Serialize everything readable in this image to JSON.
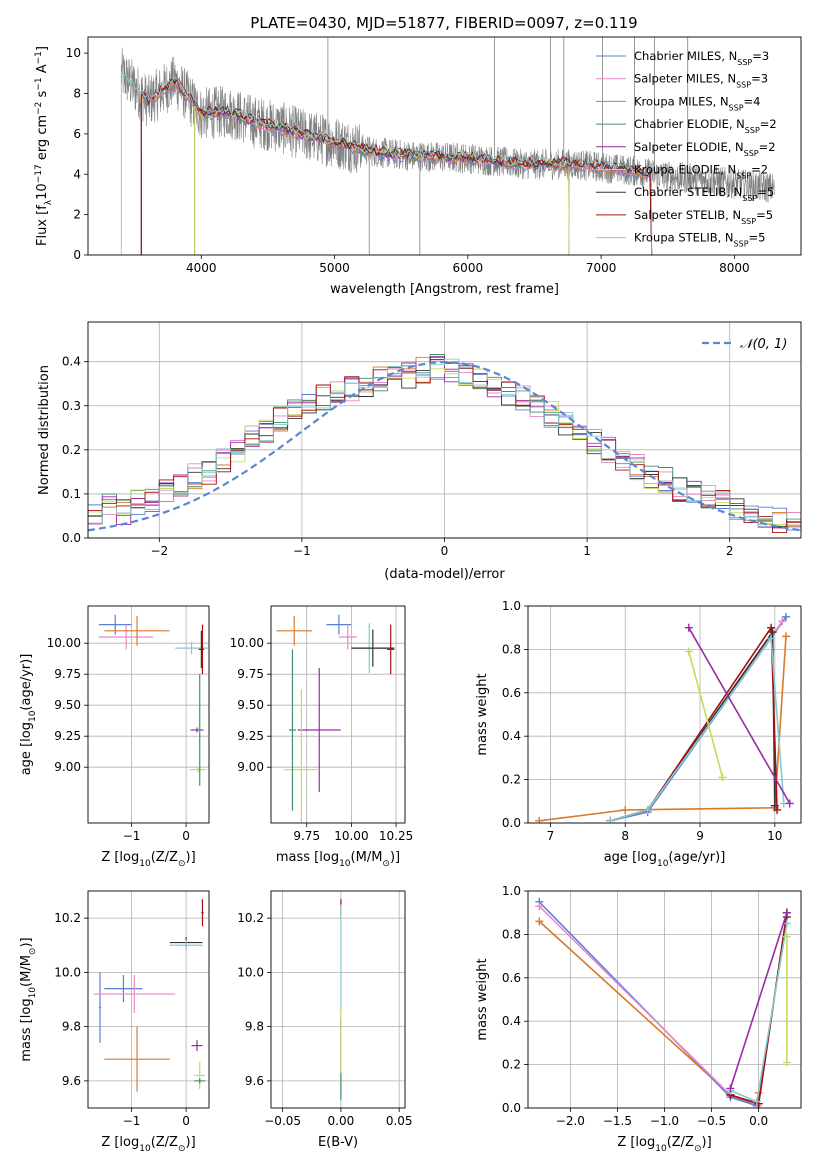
{
  "colors": {
    "data": "#808080",
    "series": [
      "#5b7fd8",
      "#e889c5",
      "#d97a2b",
      "#3f8f6f",
      "#9b2aa8",
      "#c2dd5a",
      "#333333",
      "#a51010",
      "#86c9cf"
    ],
    "normal": "#5b86d3"
  },
  "chart_data": [
    {
      "id": "spectrum",
      "type": "line",
      "title": "PLATE=0430, MJD=51877, FIBERID=0097, z=0.119",
      "xlabel": "wavelength [Angstrom, rest frame]",
      "ylabel_parts": [
        "Flux [f",
        "λ",
        "10",
        "−17",
        " erg cm",
        "−2",
        " s",
        "−1",
        " A",
        "−1",
        "]"
      ],
      "xlim": [
        3150,
        8500
      ],
      "ylim": [
        0,
        10.8
      ],
      "xticks": [
        {
          "v": 4000,
          "t": "4000"
        },
        {
          "v": 5000,
          "t": "5000"
        },
        {
          "v": 6000,
          "t": "6000"
        },
        {
          "v": 7000,
          "t": "7000"
        },
        {
          "v": 8000,
          "t": "8000"
        }
      ],
      "yticks": [
        {
          "v": 0,
          "t": "0"
        },
        {
          "v": 2,
          "t": "2"
        },
        {
          "v": 4,
          "t": "4"
        },
        {
          "v": 6,
          "t": "6"
        },
        {
          "v": 8,
          "t": "8"
        },
        {
          "v": 10,
          "t": "10"
        }
      ],
      "data_trend": {
        "x": [
          3400,
          3600,
          3800,
          4000,
          4200,
          4400,
          4600,
          4800,
          5000,
          5300,
          5600,
          6000,
          6400,
          6800,
          7200,
          7500,
          7800,
          8300
        ],
        "y": [
          9.0,
          7.6,
          8.6,
          7.0,
          7.1,
          6.6,
          6.3,
          5.9,
          5.6,
          5.1,
          4.9,
          4.8,
          4.5,
          4.5,
          4.2,
          3.9,
          3.7,
          3.3
        ]
      },
      "legend_position": "upper-right",
      "legend": [
        {
          "pre": "Chabrier MILES, N",
          "sub": "SSP",
          "post": "=3"
        },
        {
          "pre": "Salpeter MILES, N",
          "sub": "SSP",
          "post": "=3"
        },
        {
          "pre": "Kroupa MILES, N",
          "sub": "SSP",
          "post": "=4"
        },
        {
          "pre": "Chabrier ELODIE, N",
          "sub": "SSP",
          "post": "=2"
        },
        {
          "pre": "Salpeter ELODIE, N",
          "sub": "SSP",
          "post": "=2"
        },
        {
          "pre": "Kroupa ELODIE, N",
          "sub": "SSP",
          "post": "=2"
        },
        {
          "pre": "Chabrier STELIB, N",
          "sub": "SSP",
          "post": "=5"
        },
        {
          "pre": "Salpeter STELIB, N",
          "sub": "SSP",
          "post": "=5"
        },
        {
          "pre": "Kroupa STELIB, N",
          "sub": "SSP",
          "post": "=5"
        }
      ]
    },
    {
      "id": "residuals",
      "type": "line",
      "xlabel": "(data-model)/error",
      "ylabel": "Normed distribution",
      "xlim": [
        -2.5,
        2.5
      ],
      "ylim": [
        0,
        0.49
      ],
      "grid": true,
      "xticks": [
        {
          "v": -2,
          "t": "−2"
        },
        {
          "v": -1,
          "t": "−1"
        },
        {
          "v": 0,
          "t": "0"
        },
        {
          "v": 1,
          "t": "1"
        },
        {
          "v": 2,
          "t": "2"
        }
      ],
      "yticks": [
        {
          "v": 0,
          "t": "0.0"
        },
        {
          "v": 0.1,
          "t": "0.1"
        },
        {
          "v": 0.2,
          "t": "0.2"
        },
        {
          "v": 0.3,
          "t": "0.3"
        },
        {
          "v": 0.4,
          "t": "0.4"
        }
      ],
      "bin_width": 0.1,
      "base_hist": [
        0.05,
        0.07,
        0.06,
        0.08,
        0.09,
        0.11,
        0.12,
        0.14,
        0.15,
        0.18,
        0.2,
        0.23,
        0.24,
        0.27,
        0.29,
        0.3,
        0.32,
        0.33,
        0.34,
        0.35,
        0.36,
        0.37,
        0.37,
        0.38,
        0.39,
        0.38,
        0.37,
        0.36,
        0.35,
        0.33,
        0.32,
        0.3,
        0.28,
        0.26,
        0.24,
        0.22,
        0.2,
        0.18,
        0.16,
        0.14,
        0.13,
        0.11,
        0.1,
        0.09,
        0.08,
        0.07,
        0.06,
        0.05,
        0.04,
        0.03
      ],
      "legend_label": "𝒩(0, 1)"
    },
    {
      "id": "age-vs-z",
      "type": "scatter",
      "xlabel_parts": [
        "Z [log",
        "10",
        "(Z/Z",
        "⊙",
        ")]"
      ],
      "ylabel_parts": [
        "age  [log",
        "10",
        "(age/yr)]"
      ],
      "xlim": [
        -1.8,
        0.42
      ],
      "ylim": [
        8.55,
        10.3
      ],
      "grid": true,
      "xticks": [
        {
          "v": -1,
          "t": "−1"
        },
        {
          "v": 0,
          "t": "0"
        }
      ],
      "yticks": [
        {
          "v": 9.0,
          "t": "9.00"
        },
        {
          "v": 9.25,
          "t": "9.25"
        },
        {
          "v": 9.5,
          "t": "9.50"
        },
        {
          "v": 9.75,
          "t": "9.75"
        },
        {
          "v": 10.0,
          "t": "10.00"
        }
      ],
      "errorbars": [
        {
          "s": 0,
          "x": -1.3,
          "y": 10.15,
          "dx": 0.3,
          "dy": 0.08
        },
        {
          "s": 1,
          "x": -1.1,
          "y": 10.05,
          "dx": 0.5,
          "dy": 0.1
        },
        {
          "s": 2,
          "x": -0.9,
          "y": 10.1,
          "dx": 0.6,
          "dy": 0.12
        },
        {
          "s": 8,
          "x": 0.1,
          "y": 9.96,
          "dx": 0.3,
          "dy": 0.05
        },
        {
          "s": 6,
          "x": 0.28,
          "y": 9.95,
          "dx": 0.05,
          "dy": 0.15
        },
        {
          "s": 7,
          "x": 0.3,
          "y": 9.95,
          "dx": 0.02,
          "dy": 0.2
        },
        {
          "s": 4,
          "x": 0.2,
          "y": 9.3,
          "dx": 0.12,
          "dy": 0.02
        },
        {
          "s": 5,
          "x": 0.22,
          "y": 8.98,
          "dx": 0.15,
          "dy": 0.02
        },
        {
          "s": 3,
          "x": 0.25,
          "y": 9.3,
          "dx": 0.02,
          "dy": 0.45
        }
      ]
    },
    {
      "id": "age-vs-mass",
      "type": "scatter",
      "xlabel_parts": [
        "mass [log",
        "10",
        "(M/M",
        "⊙",
        ")]"
      ],
      "xlim": [
        9.55,
        10.3
      ],
      "ylim": [
        8.55,
        10.3
      ],
      "grid": true,
      "xticks": [
        {
          "v": 9.75,
          "t": "9.75"
        },
        {
          "v": 10.0,
          "t": "10.00"
        },
        {
          "v": 10.25,
          "t": "10.25"
        }
      ],
      "yticks": [
        {
          "v": 9.0,
          "t": "9.00"
        },
        {
          "v": 9.25,
          "t": "9.25"
        },
        {
          "v": 9.5,
          "t": "9.50"
        },
        {
          "v": 9.75,
          "t": "9.75"
        },
        {
          "v": 10.0,
          "t": "10.00"
        }
      ],
      "errorbars": [
        {
          "s": 0,
          "x": 9.93,
          "y": 10.15,
          "dx": 0.07,
          "dy": 0.08
        },
        {
          "s": 1,
          "x": 9.98,
          "y": 10.05,
          "dx": 0.05,
          "dy": 0.1
        },
        {
          "s": 2,
          "x": 9.68,
          "y": 10.1,
          "dx": 0.1,
          "dy": 0.12
        },
        {
          "s": 8,
          "x": 10.1,
          "y": 9.96,
          "dx": 0.1,
          "dy": 0.2
        },
        {
          "s": 6,
          "x": 10.12,
          "y": 9.96,
          "dx": 0.12,
          "dy": 0.15
        },
        {
          "s": 7,
          "x": 10.22,
          "y": 9.95,
          "dx": 0.02,
          "dy": 0.2
        },
        {
          "s": 4,
          "x": 9.82,
          "y": 9.3,
          "dx": 0.12,
          "dy": 0.5
        },
        {
          "s": 5,
          "x": 9.72,
          "y": 8.98,
          "dx": 0.1,
          "dy": 0.65
        },
        {
          "s": 3,
          "x": 9.67,
          "y": 9.3,
          "dx": 0.02,
          "dy": 0.65
        }
      ]
    },
    {
      "id": "weight-vs-age",
      "type": "line",
      "xlabel_parts": [
        "age  [log",
        "10",
        "(age/yr)]"
      ],
      "ylabel": "mass weight",
      "xlim": [
        6.7,
        10.35
      ],
      "ylim": [
        0,
        1.0
      ],
      "grid": true,
      "xticks": [
        {
          "v": 7,
          "t": "7"
        },
        {
          "v": 8,
          "t": "8"
        },
        {
          "v": 9,
          "t": "9"
        },
        {
          "v": 10,
          "t": "10"
        }
      ],
      "yticks": [
        {
          "v": 0,
          "t": "0.0"
        },
        {
          "v": 0.2,
          "t": "0.2"
        },
        {
          "v": 0.4,
          "t": "0.4"
        },
        {
          "v": 0.6,
          "t": "0.6"
        },
        {
          "v": 0.8,
          "t": "0.8"
        },
        {
          "v": 1.0,
          "t": "1.0"
        }
      ],
      "series": [
        {
          "s": 2,
          "x": [
            6.85,
            8.0,
            10.0,
            10.15
          ],
          "y": [
            0.01,
            0.06,
            0.07,
            0.86
          ]
        },
        {
          "s": 0,
          "x": [
            7.8,
            8.3,
            10.15
          ],
          "y": [
            0.01,
            0.05,
            0.95
          ]
        },
        {
          "s": 1,
          "x": [
            7.8,
            8.3,
            10.1
          ],
          "y": [
            0.01,
            0.06,
            0.93
          ]
        },
        {
          "s": 6,
          "x": [
            7.8,
            8.3,
            9.97,
            10.0
          ],
          "y": [
            0.01,
            0.06,
            0.88,
            0.08
          ]
        },
        {
          "s": 7,
          "x": [
            7.8,
            8.3,
            9.95,
            10.03
          ],
          "y": [
            0.01,
            0.06,
            0.9,
            0.06
          ]
        },
        {
          "s": 8,
          "x": [
            7.8,
            8.3,
            9.95,
            10.12
          ],
          "y": [
            0.01,
            0.06,
            0.85,
            0.09
          ]
        },
        {
          "s": 4,
          "x": [
            8.85,
            10.2
          ],
          "y": [
            0.9,
            0.09
          ]
        },
        {
          "s": 5,
          "x": [
            8.85,
            9.3
          ],
          "y": [
            0.79,
            0.21
          ]
        }
      ]
    },
    {
      "id": "mass-vs-z",
      "type": "scatter",
      "xlabel_parts": [
        "Z [log",
        "10",
        "(Z/Z",
        "⊙",
        ")]"
      ],
      "ylabel_parts": [
        "mass [log",
        "10",
        "(M/M",
        "⊙",
        ")]"
      ],
      "xlim": [
        -1.8,
        0.42
      ],
      "ylim": [
        9.5,
        10.3
      ],
      "grid": true,
      "xticks": [
        {
          "v": -1,
          "t": "−1"
        },
        {
          "v": 0,
          "t": "0"
        }
      ],
      "yticks": [
        {
          "v": 9.6,
          "t": "9.6"
        },
        {
          "v": 9.8,
          "t": "9.8"
        },
        {
          "v": 10.0,
          "t": "10.0"
        },
        {
          "v": 10.2,
          "t": "10.2"
        }
      ],
      "errorbars": [
        {
          "s": 0,
          "x": -1.15,
          "y": 9.94,
          "dx": 0.35,
          "dy": 0.05
        },
        {
          "s": 0,
          "x": -1.58,
          "y": 9.87,
          "dx": 0.02,
          "dy": 0.13
        },
        {
          "s": 1,
          "x": -0.95,
          "y": 9.92,
          "dx": 0.75,
          "dy": 0.07
        },
        {
          "s": 2,
          "x": -0.9,
          "y": 9.68,
          "dx": 0.6,
          "dy": 0.12
        },
        {
          "s": 6,
          "x": 0.0,
          "y": 10.11,
          "dx": 0.3,
          "dy": 0.02
        },
        {
          "s": 8,
          "x": 0.0,
          "y": 10.1,
          "dx": 0.3,
          "dy": 0.02
        },
        {
          "s": 7,
          "x": 0.3,
          "y": 10.22,
          "dx": 0.02,
          "dy": 0.05
        },
        {
          "s": 4,
          "x": 0.2,
          "y": 9.73,
          "dx": 0.1,
          "dy": 0.02
        },
        {
          "s": 5,
          "x": 0.25,
          "y": 9.62,
          "dx": 0.1,
          "dy": 0.05
        },
        {
          "s": 3,
          "x": 0.25,
          "y": 9.6,
          "dx": 0.1,
          "dy": 0.01
        }
      ]
    },
    {
      "id": "mass-vs-ebv",
      "type": "scatter",
      "xlabel": "E(B-V)",
      "xlim": [
        -0.06,
        0.055
      ],
      "ylim": [
        9.5,
        10.3
      ],
      "grid": true,
      "xticks": [
        {
          "v": -0.05,
          "t": "−0.05"
        },
        {
          "v": 0.0,
          "t": "0.00"
        },
        {
          "v": 0.05,
          "t": "0.05"
        }
      ],
      "yticks": [
        {
          "v": 9.6,
          "t": "9.6"
        },
        {
          "v": 9.8,
          "t": "9.8"
        },
        {
          "v": 10.0,
          "t": "10.0"
        },
        {
          "v": 10.2,
          "t": "10.2"
        }
      ],
      "errorbars": [
        {
          "s": 7,
          "x": 0.0,
          "y": 10.24,
          "dx": 0,
          "dy": 0.03
        },
        {
          "s": 8,
          "x": 0.0,
          "y": 10.05,
          "dx": 0,
          "dy": 0.2
        },
        {
          "s": 4,
          "x": 0.0,
          "y": 9.73,
          "dx": 0,
          "dy": 0.1
        },
        {
          "s": 5,
          "x": 0.0,
          "y": 9.7,
          "dx": 0,
          "dy": 0.16
        },
        {
          "s": 3,
          "x": 0.0,
          "y": 9.58,
          "dx": 0,
          "dy": 0.05
        }
      ]
    },
    {
      "id": "weight-vs-z",
      "type": "line",
      "xlabel_parts": [
        "Z [log",
        "10",
        "(Z/Z",
        "⊙",
        ")]"
      ],
      "ylabel": "mass weight",
      "xlim": [
        -2.45,
        0.45
      ],
      "ylim": [
        0,
        1.0
      ],
      "grid": true,
      "xticks": [
        {
          "v": -2.0,
          "t": "−2.0"
        },
        {
          "v": -1.5,
          "t": "−1.5"
        },
        {
          "v": -1.0,
          "t": "−1.0"
        },
        {
          "v": -0.5,
          "t": "−0.5"
        },
        {
          "v": 0.0,
          "t": "0.0"
        }
      ],
      "yticks": [
        {
          "v": 0,
          "t": "0.0"
        },
        {
          "v": 0.2,
          "t": "0.2"
        },
        {
          "v": 0.4,
          "t": "0.4"
        },
        {
          "v": 0.6,
          "t": "0.6"
        },
        {
          "v": 0.8,
          "t": "0.8"
        },
        {
          "v": 1.0,
          "t": "1.0"
        }
      ],
      "series": [
        {
          "s": 2,
          "x": [
            -2.33,
            -0.3,
            -0.02,
            0.0
          ],
          "y": [
            0.86,
            0.06,
            0.01,
            0.07
          ]
        },
        {
          "s": 0,
          "x": [
            -2.33,
            -0.3,
            -0.02
          ],
          "y": [
            0.95,
            0.05,
            0.01
          ]
        },
        {
          "s": 1,
          "x": [
            -2.33,
            -0.3,
            -0.02
          ],
          "y": [
            0.93,
            0.06,
            0.02
          ]
        },
        {
          "s": 6,
          "x": [
            -0.3,
            0.0,
            0.3,
            0.3
          ],
          "y": [
            0.06,
            0.02,
            0.9,
            0.88
          ]
        },
        {
          "s": 7,
          "x": [
            -0.3,
            0.0,
            0.3
          ],
          "y": [
            0.06,
            0.02,
            0.9
          ]
        },
        {
          "s": 8,
          "x": [
            -0.3,
            -0.02,
            0.3
          ],
          "y": [
            0.08,
            0.03,
            0.85
          ]
        },
        {
          "s": 4,
          "x": [
            -0.3,
            0.3
          ],
          "y": [
            0.09,
            0.9
          ]
        },
        {
          "s": 5,
          "x": [
            0.3,
            0.3
          ],
          "y": [
            0.79,
            0.21
          ]
        }
      ]
    }
  ]
}
